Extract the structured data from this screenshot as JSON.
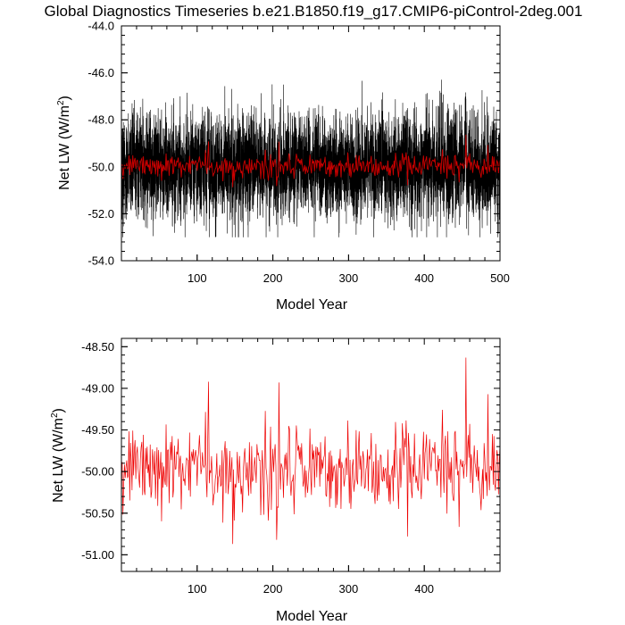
{
  "page_title": "Global Diagnostics Timeseries b.e21.B1850.f19_g17.CMIP6-piControl-2deg.001",
  "chart_data": [
    {
      "type": "line",
      "title": "Global Diagnostics Timeseries b.e21.B1850.f19_g17.CMIP6-piControl-2deg.001",
      "xlabel": "Model Year",
      "ylabel_main": "Net LW (W/m",
      "ylabel_sup": "2",
      "ylabel_tail": ")",
      "xlim": [
        0,
        500
      ],
      "ylim": [
        -54.0,
        -44.0
      ],
      "xticks": [
        100,
        200,
        300,
        400,
        500
      ],
      "xtick_labels": [
        "100",
        "200",
        "300",
        "400",
        "500"
      ],
      "yticks": [
        -54,
        -52,
        -50,
        -48,
        -46,
        -44
      ],
      "ytick_labels": [
        "-54.0",
        "-52.0",
        "-50.0",
        "-48.0",
        "-46.0",
        "-44.0"
      ],
      "grid": false,
      "series": [
        {
          "color": "#000000",
          "description_of_values": "monthly values for years 1-500, fluctuating between about -53.0 and -45.5, centered near -50.0"
        },
        {
          "color": "#cc0000",
          "description_of_values": "annual mean values, centered near -50.0, range about -50.9 to -48.6"
        }
      ]
    },
    {
      "type": "line",
      "xlabel": "Model Year",
      "ylabel_main": "Net LW (W/m",
      "ylabel_sup": "2",
      "ylabel_tail": ")",
      "xlim": [
        0,
        500
      ],
      "ylim": [
        -51.2,
        -48.4
      ],
      "xticks": [
        100,
        200,
        300,
        400
      ],
      "xtick_labels": [
        "100",
        "200",
        "300",
        "400"
      ],
      "yticks": [
        -51.0,
        -50.5,
        -50.0,
        -49.5,
        -49.0,
        -48.5
      ],
      "ytick_labels": [
        "-51.00",
        "-50.50",
        "-50.00",
        "-49.50",
        "-49.00",
        "-48.50"
      ],
      "grid": false,
      "series": [
        {
          "color": "#ee0000",
          "key_points": [
            {
              "x": 115,
              "y": -48.92
            },
            {
              "x": 147,
              "y": -50.87
            },
            {
              "x": 205,
              "y": -50.82
            },
            {
              "x": 208,
              "y": -48.93
            },
            {
              "x": 378,
              "y": -50.78
            },
            {
              "x": 455,
              "y": -48.63
            },
            {
              "x": 484,
              "y": -49.07
            }
          ],
          "mean": -49.98,
          "std": 0.28,
          "n": 500
        }
      ]
    }
  ]
}
